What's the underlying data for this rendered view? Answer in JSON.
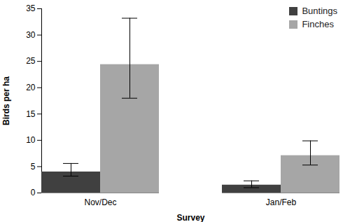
{
  "chart_data": {
    "type": "bar",
    "x_label": "Survey",
    "y_label": "Birds per ha",
    "categories": [
      "Nov/Dec",
      "Jan/Feb"
    ],
    "series": [
      {
        "name": "Buntings",
        "color": "#404040",
        "values": [
          4.0,
          1.5
        ],
        "lower": [
          3.2,
          1.0
        ],
        "upper": [
          5.6,
          2.3
        ]
      },
      {
        "name": "Finches",
        "color": "#a6a6a6",
        "values": [
          24.4,
          7.1
        ],
        "lower": [
          18.0,
          5.3
        ],
        "upper": [
          33.2,
          9.9
        ]
      }
    ],
    "ylim": [
      0,
      35
    ],
    "yticks": [
      0,
      5,
      10,
      15,
      20,
      25,
      30,
      35
    ],
    "legend": "top-right"
  }
}
